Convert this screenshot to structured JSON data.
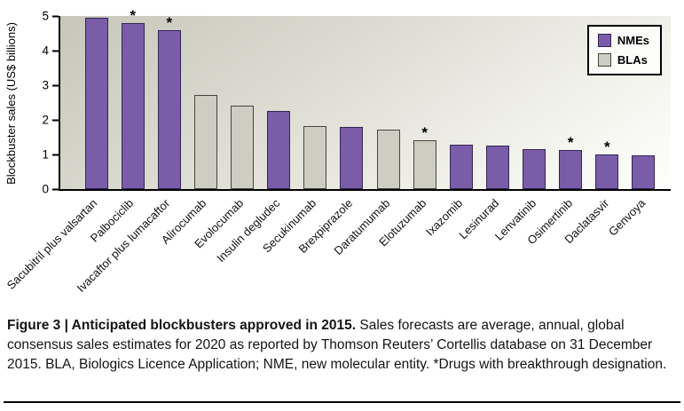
{
  "figure": {
    "caption_bold": "Figure 3 | Anticipated blockbusters approved in 2015.",
    "caption_text": " Sales forecasts are average, annual, global consensus sales estimates for 2020 as reported by Thomson Reuters’ Cortellis database on 31 December 2015. BLA, Biologics Licence Application; NME, new molecular entity. *Drugs with breakthrough designation."
  },
  "legend": {
    "items": [
      {
        "label": "NMEs",
        "type": "NME"
      },
      {
        "label": "BLAs",
        "type": "BLA"
      }
    ]
  },
  "chart_data": {
    "type": "bar",
    "title": "",
    "xlabel": "",
    "ylabel": "Blockbuster sales (US$ billions)",
    "ylim": [
      0,
      5
    ],
    "yticks": [
      0,
      1,
      2,
      3,
      4,
      5
    ],
    "grid": false,
    "legend_position": "top-right",
    "breakthrough_marker": "*",
    "breakthrough_note": "*Drugs with breakthrough designation",
    "colors": {
      "NME": "#7a5da8",
      "BLA": "#cdcdc2"
    },
    "points": [
      {
        "label": "Sacubitril plus valsartan",
        "value": 4.95,
        "type": "NME",
        "breakthrough": false
      },
      {
        "label": "Palbociclib",
        "value": 4.8,
        "type": "NME",
        "breakthrough": true
      },
      {
        "label": "Ivacaftor plus lumacaftor",
        "value": 4.6,
        "type": "NME",
        "breakthrough": true
      },
      {
        "label": "Alirocumab",
        "value": 2.72,
        "type": "BLA",
        "breakthrough": false
      },
      {
        "label": "Evolocumab",
        "value": 2.41,
        "type": "BLA",
        "breakthrough": false
      },
      {
        "label": "Insulin degludec",
        "value": 2.25,
        "type": "NME",
        "breakthrough": false
      },
      {
        "label": "Secukinumab",
        "value": 1.83,
        "type": "BLA",
        "breakthrough": false
      },
      {
        "label": "Brexpiprazole",
        "value": 1.8,
        "type": "NME",
        "breakthrough": false
      },
      {
        "label": "Daratumumab",
        "value": 1.73,
        "type": "BLA",
        "breakthrough": false
      },
      {
        "label": "Elotuzumab",
        "value": 1.4,
        "type": "BLA",
        "breakthrough": true
      },
      {
        "label": "Ixazomib",
        "value": 1.28,
        "type": "NME",
        "breakthrough": false
      },
      {
        "label": "Lesinurad",
        "value": 1.26,
        "type": "NME",
        "breakthrough": false
      },
      {
        "label": "Lenvatinib",
        "value": 1.15,
        "type": "NME",
        "breakthrough": false
      },
      {
        "label": "Osimertinib",
        "value": 1.12,
        "type": "NME",
        "breakthrough": true
      },
      {
        "label": "Daclatasvir",
        "value": 1.0,
        "type": "NME",
        "breakthrough": true
      },
      {
        "label": "Genvoya",
        "value": 0.97,
        "type": "NME",
        "breakthrough": false
      }
    ]
  }
}
